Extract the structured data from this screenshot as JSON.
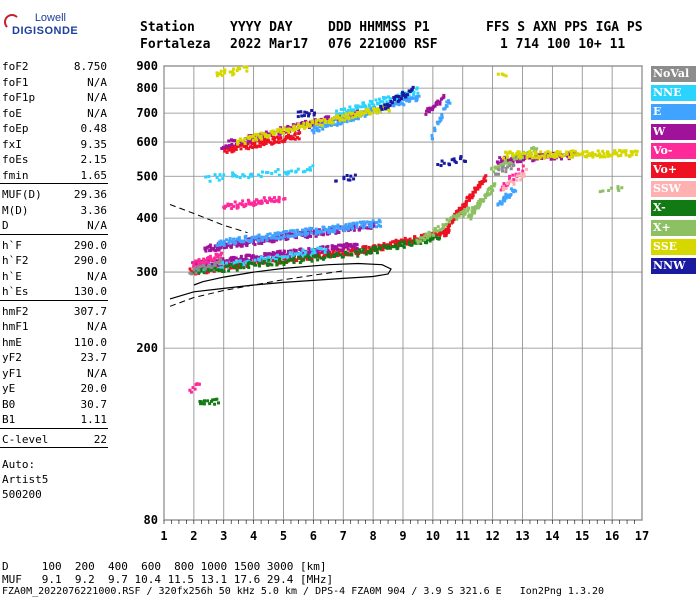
{
  "logo": {
    "top": "Lowell",
    "bottom": "DIGISONDE"
  },
  "header": {
    "line1": [
      "Station",
      "YYYY DAY",
      "DDD HHMMSS P1",
      "FFS S AXN PPS IGA PS"
    ],
    "line2": [
      "Fortaleza",
      "2022 Mar17",
      "076 221000 RSF",
      "1 714 100 10+ 11"
    ]
  },
  "params": [
    {
      "group": [
        {
          "label": "foF2",
          "value": "8.750"
        },
        {
          "label": "foF1",
          "value": "N/A"
        },
        {
          "label": "foF1p",
          "value": "N/A"
        },
        {
          "label": "foE",
          "value": "N/A"
        },
        {
          "label": "foEp",
          "value": "0.48"
        },
        {
          "label": "fxI",
          "value": "9.35"
        },
        {
          "label": "foEs",
          "value": "2.15"
        },
        {
          "label": "fmin",
          "value": "1.65"
        }
      ]
    },
    {
      "group": [
        {
          "label": "MUF(D)",
          "value": "29.36"
        },
        {
          "label": "M(D)",
          "value": "3.36"
        },
        {
          "label": "D",
          "value": "N/A"
        }
      ]
    },
    {
      "group": [
        {
          "label": "h`F",
          "value": "290.0"
        },
        {
          "label": "h`F2",
          "value": "290.0"
        },
        {
          "label": "h`E",
          "value": "N/A"
        },
        {
          "label": "h`Es",
          "value": "130.0"
        }
      ]
    },
    {
      "group": [
        {
          "label": "hmF2",
          "value": "307.7"
        },
        {
          "label": "hmF1",
          "value": "N/A"
        },
        {
          "label": "hmE",
          "value": "110.0"
        },
        {
          "label": "yF2",
          "value": "23.7"
        },
        {
          "label": "yF1",
          "value": "N/A"
        },
        {
          "label": "yE",
          "value": "20.0"
        },
        {
          "label": "B0",
          "value": "30.7"
        },
        {
          "label": "B1",
          "value": "1.11"
        }
      ]
    },
    {
      "group": [
        {
          "label": "C-level",
          "value": "22"
        }
      ]
    }
  ],
  "auto": [
    "Auto:",
    "Artist5",
    "500200"
  ],
  "legend": [
    {
      "label": "NoVal",
      "color": "#8c8c8c"
    },
    {
      "label": "NNE",
      "color": "#2ad4ff"
    },
    {
      "label": "E",
      "color": "#3fa3ff"
    },
    {
      "label": "W",
      "color": "#a0129a"
    },
    {
      "label": "Vo-",
      "color": "#ff2a9a"
    },
    {
      "label": "Vo+",
      "color": "#ee1122"
    },
    {
      "label": "SSW",
      "color": "#ffb0b0"
    },
    {
      "label": "X-",
      "color": "#127a12"
    },
    {
      "label": "X+",
      "color": "#8cc063"
    },
    {
      "label": "SSE",
      "color": "#d7d700"
    },
    {
      "label": "NNW",
      "color": "#1a1aa0"
    }
  ],
  "footer": {
    "d_row": "D     100  200  400  600  800 1000 1500 3000 [km]",
    "muf_row": "MUF   9.1  9.2  9.7 10.4 11.5 13.1 17.6 29.4 [MHz]",
    "file_row": "FZA0M_2022076221000.RSF / 320fx256h 50 kHz 5.0 km / DPS-4 FZA0M 904 / 3.9 S 321.6 E   Ion2Png 1.3.20"
  },
  "chart_data": {
    "type": "scatter",
    "title": "",
    "xlabel": "",
    "ylabel": "",
    "x_range": [
      1,
      17
    ],
    "y_range": [
      80,
      900
    ],
    "x_ticks": [
      1,
      2,
      3,
      4,
      5,
      6,
      7,
      8,
      9,
      10,
      11,
      12,
      13,
      14,
      15,
      16,
      17
    ],
    "y_ticks": [
      80,
      200,
      300,
      400,
      500,
      600,
      700,
      800,
      900
    ],
    "y_scale": "log",
    "grid": true,
    "legend_position": "right",
    "series": [
      {
        "color": "#ee1122",
        "segments": [
          [
            1.9,
            300,
            8.0,
            340,
            0.12,
            4
          ],
          [
            7.8,
            338,
            10.5,
            370,
            0.1,
            4
          ],
          [
            10.4,
            370,
            11.8,
            500,
            0.05,
            3
          ],
          [
            3.0,
            574,
            5.5,
            620,
            0.1,
            4
          ]
        ]
      },
      {
        "color": "#a0129a",
        "segments": [
          [
            2.0,
            312,
            7.5,
            345,
            0.14,
            5
          ],
          [
            2.4,
            340,
            8.0,
            385,
            0.14,
            5
          ],
          [
            3.0,
            590,
            7.5,
            700,
            0.14,
            4
          ],
          [
            9.8,
            705,
            10.4,
            760,
            0.08,
            3
          ],
          [
            12.2,
            545,
            14.8,
            560,
            0.1,
            3
          ]
        ]
      },
      {
        "color": "#3fa3ff",
        "segments": [
          [
            2.8,
            350,
            8.3,
            390,
            0.12,
            4
          ],
          [
            6.0,
            640,
            9.5,
            760,
            0.1,
            4
          ],
          [
            12.2,
            430,
            12.8,
            470,
            0.05,
            2
          ],
          [
            10.0,
            620,
            10.6,
            760,
            0.08,
            3
          ]
        ]
      },
      {
        "color": "#2ad4ff",
        "segments": [
          [
            2.2,
            305,
            6.5,
            338,
            0.16,
            3
          ],
          [
            2.5,
            495,
            6.0,
            520,
            0.25,
            3
          ],
          [
            6.8,
            700,
            9.5,
            790,
            0.12,
            3
          ]
        ]
      },
      {
        "color": "#ff2a9a",
        "segments": [
          [
            2.0,
            312,
            3.0,
            330,
            0.1,
            4
          ],
          [
            3.0,
            425,
            5.0,
            445,
            0.1,
            3
          ],
          [
            12.3,
            470,
            13.0,
            520,
            0.1,
            2
          ],
          [
            1.9,
            160,
            2.3,
            170,
            0.1,
            2
          ]
        ]
      },
      {
        "color": "#127a12",
        "segments": [
          [
            2.0,
            300,
            8.0,
            335,
            0.16,
            3
          ],
          [
            7.9,
            335,
            10.2,
            360,
            0.12,
            3
          ],
          [
            2.2,
            148,
            2.9,
            152,
            0.1,
            2
          ]
        ]
      },
      {
        "color": "#8cc063",
        "segments": [
          [
            9.5,
            350,
            11.5,
            430,
            0.1,
            3
          ],
          [
            11.2,
            400,
            12.1,
            480,
            0.05,
            3
          ],
          [
            12.0,
            520,
            13.5,
            580,
            0.12,
            3
          ],
          [
            15.7,
            460,
            16.3,
            470,
            0.2,
            2
          ]
        ]
      },
      {
        "color": "#d7d700",
        "segments": [
          [
            3.5,
            600,
            8.5,
            720,
            0.1,
            3
          ],
          [
            12.4,
            560,
            16.8,
            565,
            0.1,
            3
          ],
          [
            2.8,
            860,
            3.8,
            890,
            0.15,
            3
          ],
          [
            12.2,
            850,
            12.5,
            860,
            0.1,
            1
          ]
        ]
      },
      {
        "color": "#1a1aa0",
        "segments": [
          [
            8.3,
            720,
            9.3,
            790,
            0.1,
            3
          ],
          [
            6.8,
            490,
            7.5,
            500,
            0.15,
            2
          ],
          [
            10.2,
            535,
            11.2,
            550,
            0.15,
            2
          ],
          [
            5.5,
            695,
            6.0,
            700,
            0.1,
            2
          ]
        ]
      },
      {
        "color": "#8c8c8c",
        "segments": [
          [
            1.9,
            300,
            3.0,
            320,
            0.1,
            2
          ],
          [
            12.1,
            510,
            12.7,
            525,
            0.1,
            2
          ]
        ]
      },
      {
        "color": "#ffb0b0",
        "segments": [
          [
            12.4,
            470,
            13.1,
            510,
            0.1,
            2
          ]
        ]
      }
    ],
    "profile_curve": {
      "x": [
        1.2,
        2.0,
        3.0,
        4.0,
        5.0,
        6.0,
        7.0,
        8.0,
        8.5,
        8.6,
        8.3,
        7.5,
        6.5,
        5.0,
        4.0,
        3.0,
        2.3,
        2.0
      ],
      "y": [
        260,
        270,
        275,
        280,
        284,
        287,
        290,
        293,
        297,
        305,
        312,
        314,
        312,
        306,
        300,
        292,
        285,
        280
      ]
    },
    "dashed_curves": [
      {
        "x": [
          1.2,
          2.0,
          3.0,
          3.8
        ],
        "y": [
          430,
          410,
          385,
          370
        ]
      },
      {
        "x": [
          1.2,
          2.0,
          3.0,
          4.0,
          5.0,
          6.0,
          7.0
        ],
        "y": [
          250,
          262,
          272,
          280,
          288,
          295,
          302
        ]
      }
    ]
  }
}
